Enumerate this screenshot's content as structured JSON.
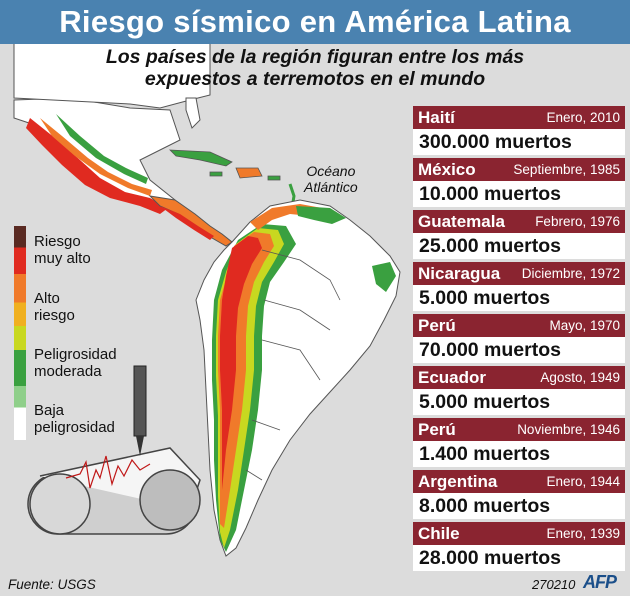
{
  "title": "Riesgo sísmico en América Latina",
  "subtitle_line1": "Los países de la región figuran entre los más",
  "subtitle_line2": "expuestos a terremotos en el mundo",
  "ocean_label_line1": "Océano",
  "ocean_label_line2": "Atlántico",
  "legend": [
    {
      "line1": "Riesgo",
      "line2": "muy alto",
      "colors": [
        "#5a2a22",
        "#e02a20"
      ]
    },
    {
      "line1": "Alto",
      "line2": "riesgo",
      "colors": [
        "#f07a2a",
        "#f0b020"
      ]
    },
    {
      "line1": "Peligrosidad",
      "line2": "moderada",
      "colors": [
        "#c8d820",
        "#3aa040"
      ]
    },
    {
      "line1": "Baja",
      "line2": "peligrosidad",
      "colors": [
        "#8fcf8a",
        "#ffffff"
      ]
    }
  ],
  "earthquakes": [
    {
      "country": "Haití",
      "date": "Enero, 2010",
      "deaths": "300.000 muertos"
    },
    {
      "country": "México",
      "date": "Septiembre, 1985",
      "deaths": "10.000 muertos"
    },
    {
      "country": "Guatemala",
      "date": "Febrero, 1976",
      "deaths": "25.000 muertos"
    },
    {
      "country": "Nicaragua",
      "date": "Diciembre, 1972",
      "deaths": "5.000 muertos"
    },
    {
      "country": "Perú",
      "date": "Mayo, 1970",
      "deaths": "70.000 muertos"
    },
    {
      "country": "Ecuador",
      "date": "Agosto, 1949",
      "deaths": "5.000 muertos"
    },
    {
      "country": "Perú",
      "date": "Noviembre, 1946",
      "deaths": "1.400 muertos"
    },
    {
      "country": "Argentina",
      "date": "Enero, 1944",
      "deaths": "8.000 muertos"
    },
    {
      "country": "Chile",
      "date": "Enero, 1939",
      "deaths": "28.000 muertos"
    }
  ],
  "source": "Fuente: USGS",
  "code": "270210",
  "logo": "AFP",
  "colors": {
    "title_bar": "#4a82b0",
    "quake_header": "#8a2430",
    "very_high": "#e02a20",
    "high": "#f07a2a",
    "moderate": "#3aa040",
    "low": "#ffffff"
  }
}
